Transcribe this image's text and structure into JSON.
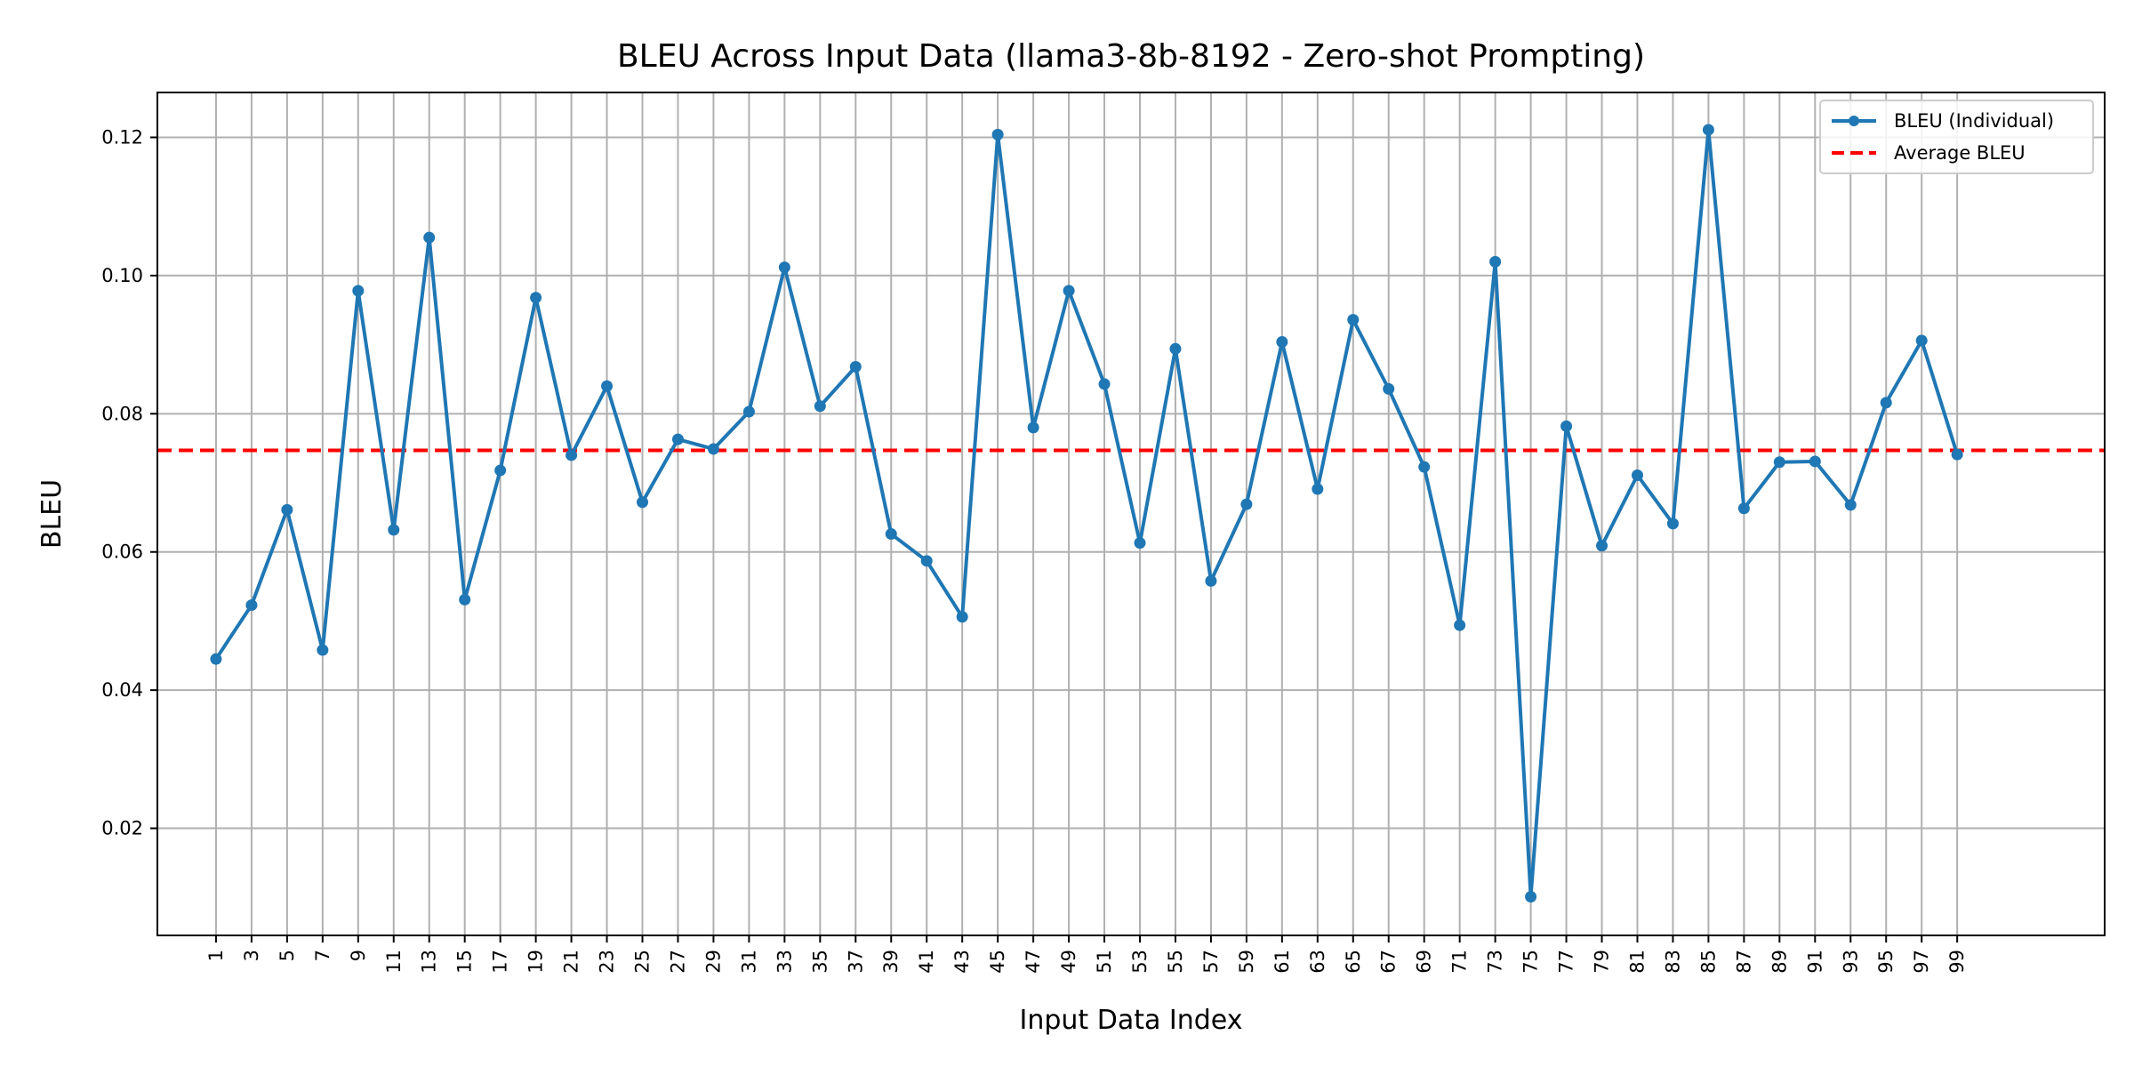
{
  "chart_data": {
    "type": "line",
    "title": "BLEU Across Input Data (llama3-8b-8192 - Zero-shot Prompting)",
    "xlabel": "Input Data Index",
    "ylabel": "BLEU",
    "xlim": [
      -2.3,
      107.3
    ],
    "ylim": [
      0.0045,
      0.1265
    ],
    "x_ticks": [
      1,
      3,
      5,
      7,
      9,
      11,
      13,
      15,
      17,
      19,
      21,
      23,
      25,
      27,
      29,
      31,
      33,
      35,
      37,
      39,
      41,
      43,
      45,
      47,
      49,
      51,
      53,
      55,
      57,
      59,
      61,
      63,
      65,
      67,
      69,
      71,
      73,
      75,
      77,
      79,
      81,
      83,
      85,
      87,
      89,
      91,
      93,
      95,
      97,
      99
    ],
    "y_ticks": [
      0.02,
      0.04,
      0.06,
      0.08,
      0.1,
      0.12
    ],
    "y_tick_labels": [
      "0.02",
      "0.04",
      "0.06",
      "0.08",
      "0.10",
      "0.12"
    ],
    "grid": true,
    "legend_position": "top-right",
    "series": [
      {
        "name": "BLEU (Individual)",
        "color": "#1f77b4",
        "style": "solid-with-markers",
        "x": [
          1,
          3,
          5,
          7,
          9,
          11,
          13,
          15,
          17,
          19,
          21,
          23,
          25,
          27,
          29,
          31,
          33,
          35,
          37,
          39,
          41,
          43,
          45,
          47,
          49,
          51,
          53,
          55,
          57,
          59,
          61,
          63,
          65,
          67,
          69,
          71,
          73,
          75,
          77,
          79,
          81,
          83,
          85,
          87,
          89,
          91,
          93,
          95,
          97,
          99
        ],
        "values": [
          0.0445,
          0.0523,
          0.0661,
          0.0458,
          0.0978,
          0.0632,
          0.1055,
          0.0531,
          0.0718,
          0.0968,
          0.074,
          0.084,
          0.0672,
          0.0763,
          0.0749,
          0.0803,
          0.1012,
          0.0811,
          0.0868,
          0.0626,
          0.0587,
          0.0506,
          0.1204,
          0.078,
          0.0978,
          0.0843,
          0.0613,
          0.0894,
          0.0558,
          0.0669,
          0.0904,
          0.0691,
          0.0936,
          0.0836,
          0.0723,
          0.0494,
          0.102,
          0.0101,
          0.0782,
          0.0609,
          0.0711,
          0.0641,
          0.1211,
          0.0663,
          0.073,
          0.0731,
          0.0668,
          0.0816,
          0.0906,
          0.0741
        ]
      },
      {
        "name": "Average BLEU",
        "color": "#ff0000",
        "style": "dashed",
        "value": 0.0747
      }
    ]
  }
}
